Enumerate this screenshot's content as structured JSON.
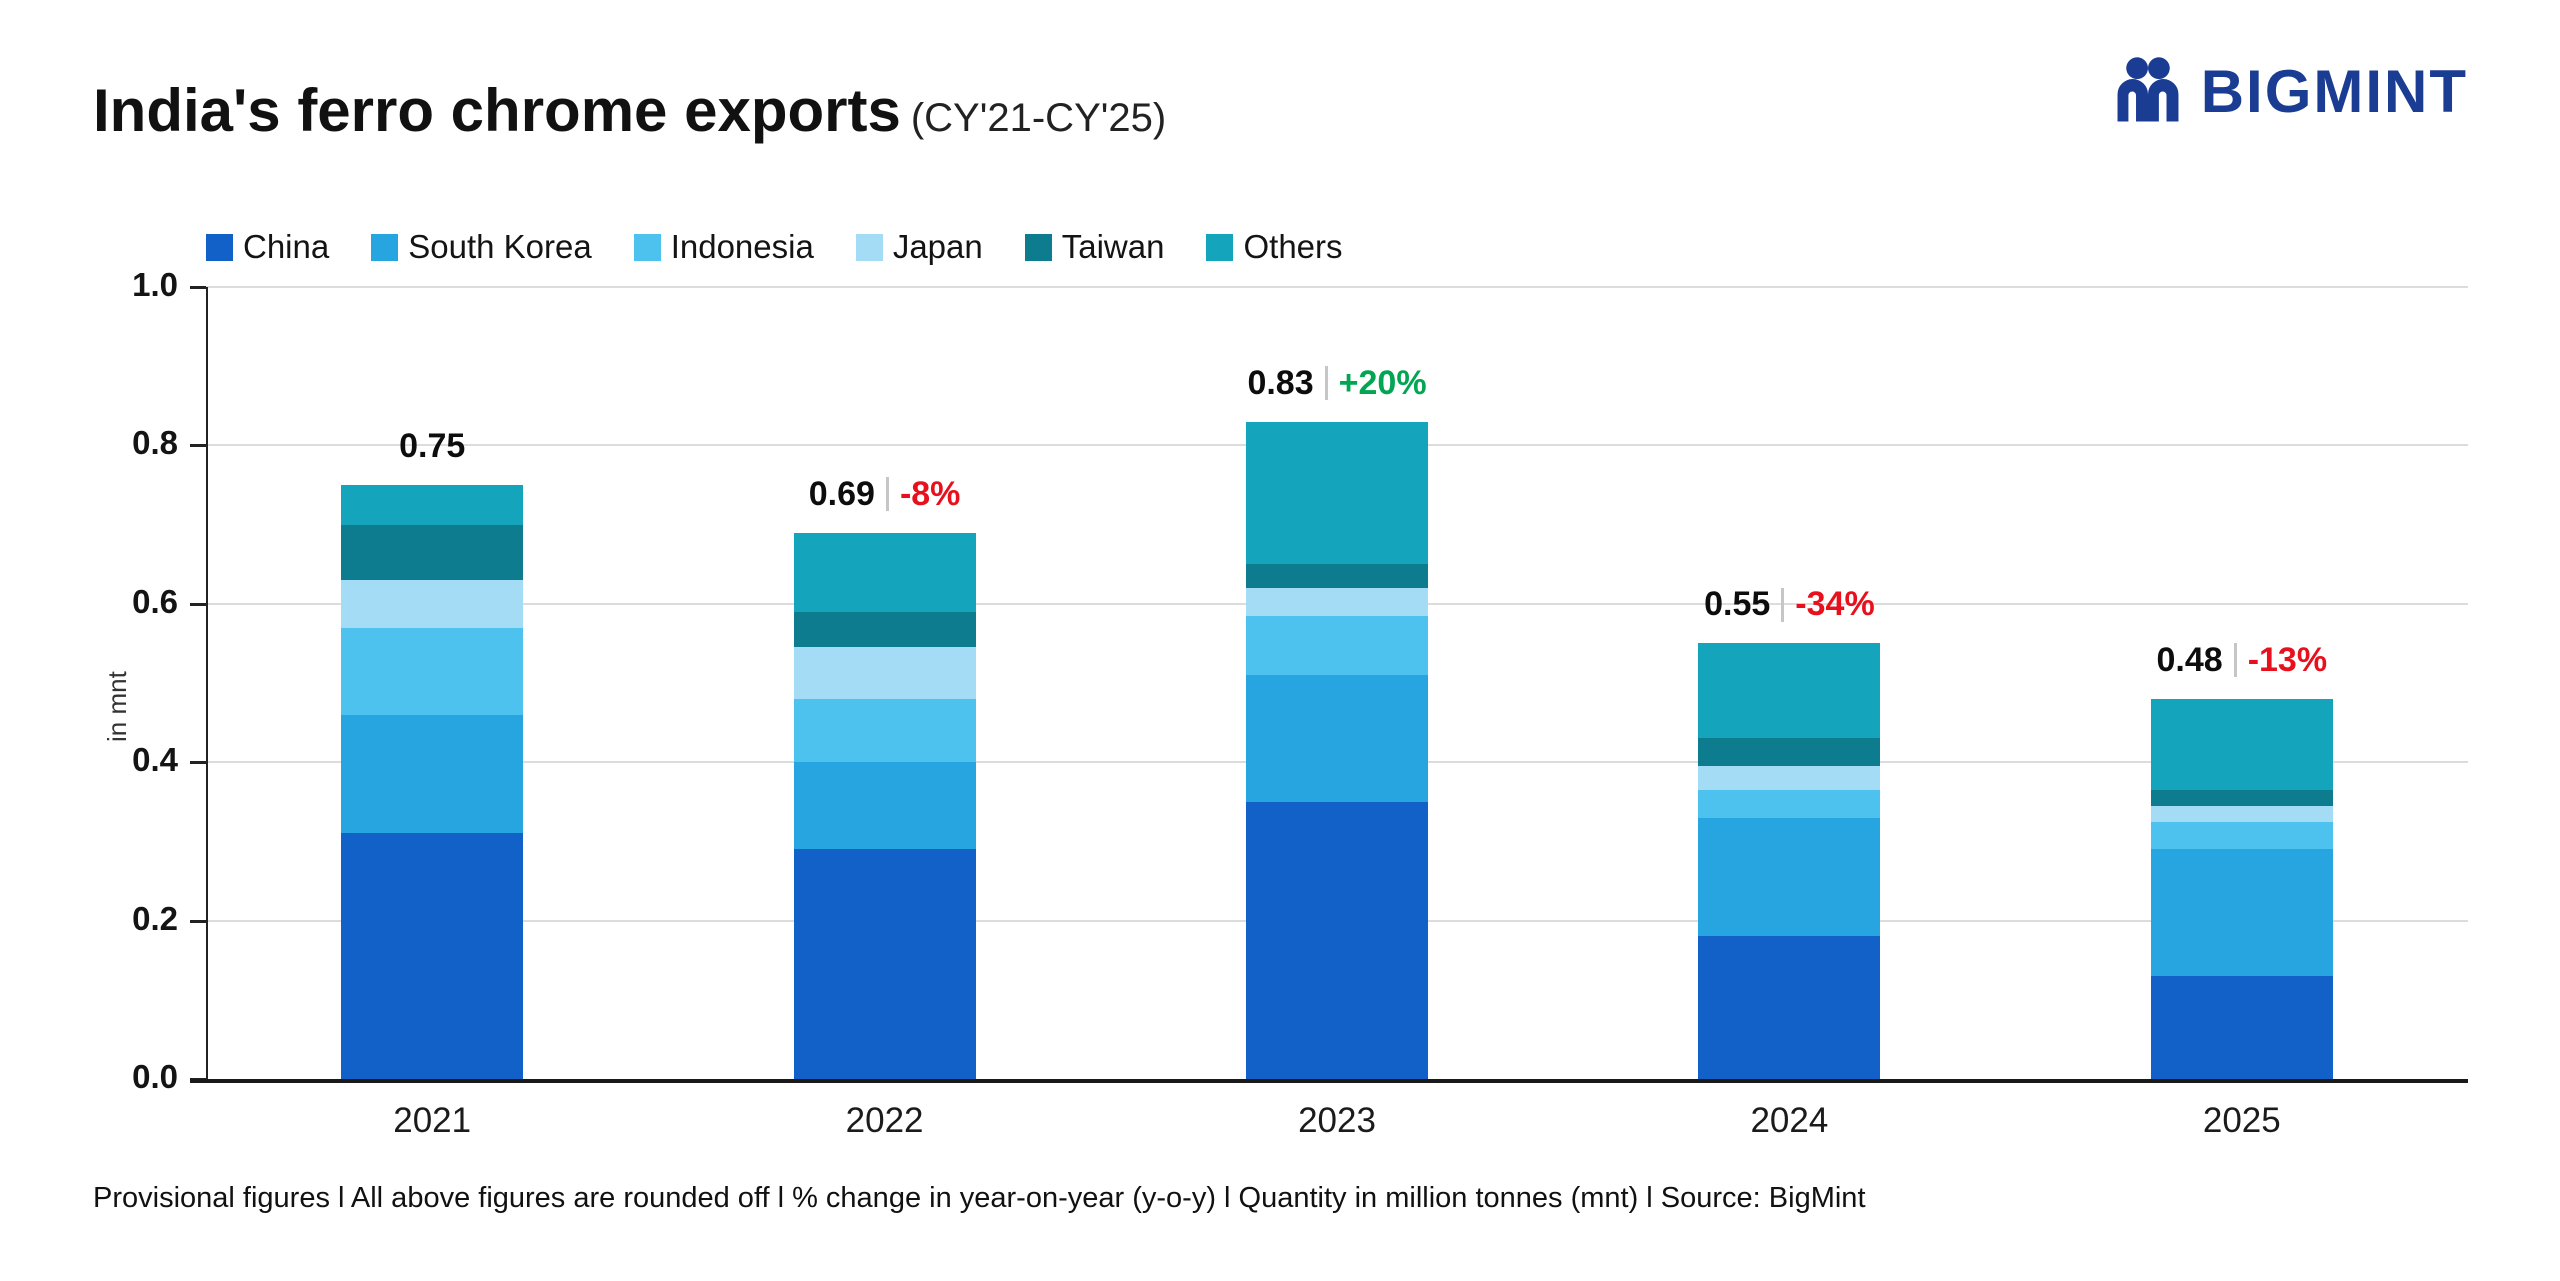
{
  "header": {
    "title": "India's ferro chrome exports",
    "subtitle": "(CY'21-CY'25)",
    "brand": "BIGMINT"
  },
  "chart_data": {
    "type": "bar",
    "stacked": true,
    "title": "India's ferro chrome exports (CY'21-CY'25)",
    "ylabel": "in mnt",
    "unit": "mnt",
    "ylim": [
      0,
      1.0
    ],
    "yticks": [
      0,
      0.2,
      0.4,
      0.6,
      0.8,
      1.0
    ],
    "grid": "horizontal",
    "legend_position": "top",
    "categories": [
      "2021",
      "2022",
      "2023",
      "2024",
      "2025"
    ],
    "series": [
      {
        "name": "China",
        "color": "#1161c9",
        "values": [
          0.31,
          0.29,
          0.35,
          0.18,
          0.13
        ]
      },
      {
        "name": "South Korea",
        "color": "#27a5e0",
        "values": [
          0.15,
          0.11,
          0.16,
          0.15,
          0.16
        ]
      },
      {
        "name": "Indonesia",
        "color": "#4ec2ee",
        "values": [
          0.11,
          0.08,
          0.075,
          0.035,
          0.035
        ]
      },
      {
        "name": "Japan",
        "color": "#a4dcf5",
        "values": [
          0.06,
          0.065,
          0.035,
          0.03,
          0.02
        ]
      },
      {
        "name": "Taiwan",
        "color": "#0c7c8e",
        "values": [
          0.07,
          0.045,
          0.03,
          0.035,
          0.02
        ]
      },
      {
        "name": "Others",
        "color": "#14a5bd",
        "values": [
          0.05,
          0.1,
          0.18,
          0.12,
          0.115
        ]
      }
    ],
    "totals": [
      "0.75",
      "0.69",
      "0.83",
      "0.55",
      "0.48"
    ],
    "changes": [
      null,
      "-8%",
      "+20%",
      "-34%",
      "-13%"
    ],
    "change_colors": [
      null,
      "#e8101c",
      "#00a651",
      "#e8101c",
      "#e8101c"
    ],
    "positive_color": "#00a651",
    "negative_color": "#e8101c"
  },
  "footer": {
    "text": "Provisional figures  l  All above figures are rounded off   l  % change in year-on-year (y-o-y)  l  Quantity in million tonnes (mnt)  l  Source: BigMint"
  }
}
